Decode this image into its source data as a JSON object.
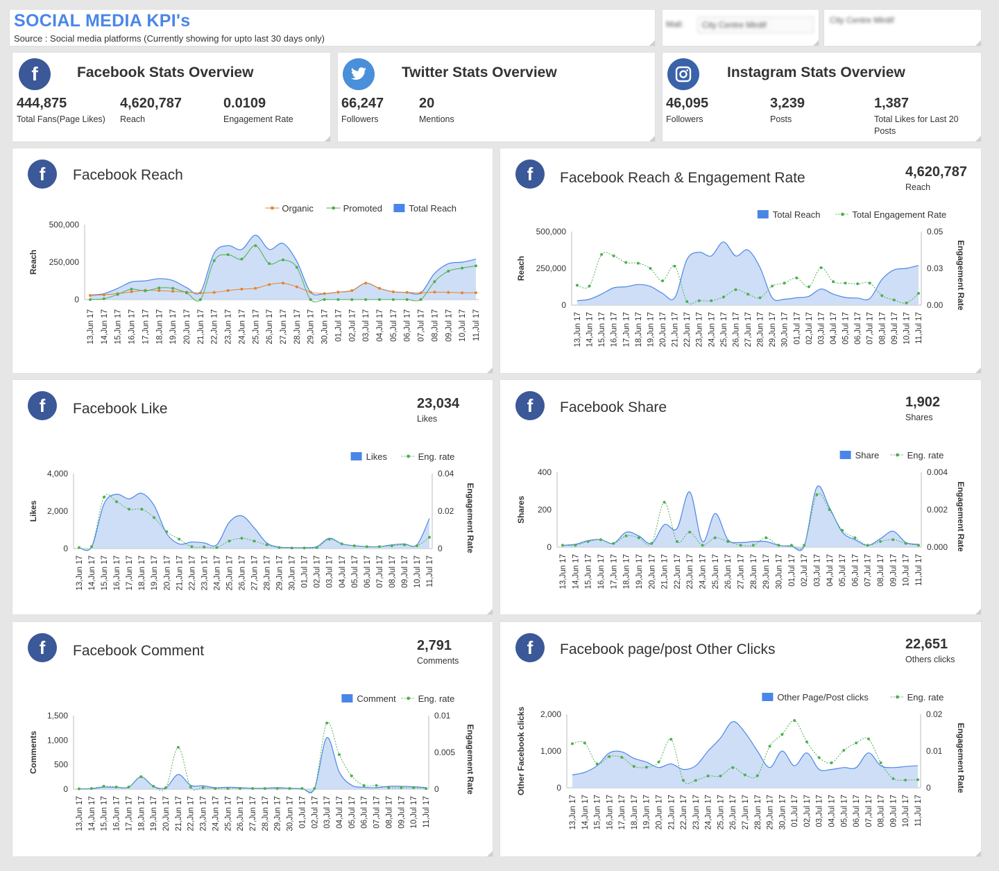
{
  "header": {
    "title": "SOCIAL MEDIA KPI's",
    "subtitle": "Source : Social media platforms (Currently showing for upto last 30 days only)"
  },
  "filters": {
    "mall_label": "Mall:",
    "mall_value": "City Centre Mirdif",
    "selected_display": "City Centre Mirdif"
  },
  "overview": {
    "facebook": {
      "title": "Facebook Stats Overview",
      "kpis": [
        {
          "value": "444,875",
          "label": "Total Fans(Page Likes)"
        },
        {
          "value": "4,620,787",
          "label": "Reach"
        },
        {
          "value": "0.0109",
          "label": "Engagement Rate"
        }
      ]
    },
    "twitter": {
      "title": "Twitter Stats Overview",
      "kpis": [
        {
          "value": "66,247",
          "label": "Followers"
        },
        {
          "value": "20",
          "label": "Mentions"
        }
      ]
    },
    "instagram": {
      "title": "Instagram Stats Overview",
      "kpis": [
        {
          "value": "46,095",
          "label": "Followers"
        },
        {
          "value": "3,239",
          "label": "Posts"
        },
        {
          "value": "1,387",
          "label": "Total Likes for Last 20 Posts"
        }
      ]
    }
  },
  "colors": {
    "accent": "#4a86e8",
    "facebook": "#3b5898",
    "twitter": "#4a8fd9",
    "instagram": "#3a62a8",
    "area_fill": "#c9daf5",
    "area_line": "#4a86e8",
    "organic": "#e8822a",
    "promoted": "#4caf50"
  },
  "chart_data": [
    {
      "id": "fb-reach",
      "type": "area",
      "title": "Facebook Reach",
      "ylabel": "Reach",
      "ylim": [
        0,
        500000
      ],
      "yticks": [
        "0",
        "250,000",
        "500,000"
      ],
      "x": [
        "13,Jun 17",
        "14,Jun 17",
        "15,Jun 17",
        "16,Jun 17",
        "17,Jun 17",
        "18,Jun 17",
        "19,Jun 17",
        "20,Jun 17",
        "21,Jun 17",
        "22,Jun 17",
        "23,Jun 17",
        "24,Jun 17",
        "25,Jun 17",
        "26,Jun 17",
        "27,Jun 17",
        "28,Jun 17",
        "29,Jun 17",
        "30,Jun 17",
        "01,Jul 17",
        "02,Jul 17",
        "03,Jul 17",
        "04,Jul 17",
        "05,Jul 17",
        "06,Jul 17",
        "07,Jul 17",
        "08,Jul 17",
        "09,Jul 17",
        "10,Jul 17",
        "11,Jul 17"
      ],
      "legend": "top-right",
      "series": [
        {
          "name": "Organic",
          "kind": "line",
          "color": "#e8822a",
          "values": [
            28000,
            32000,
            40000,
            52000,
            62000,
            60000,
            55000,
            50000,
            45000,
            48000,
            60000,
            70000,
            75000,
            100000,
            110000,
            85000,
            50000,
            40000,
            50000,
            60000,
            110000,
            75000,
            52000,
            48000,
            45000,
            50000,
            48000,
            45000,
            46000
          ]
        },
        {
          "name": "Promoted",
          "kind": "line",
          "color": "#4caf50",
          "values": [
            0,
            5000,
            35000,
            70000,
            58000,
            78000,
            75000,
            45000,
            0,
            260000,
            300000,
            270000,
            360000,
            240000,
            265000,
            215000,
            0,
            0,
            0,
            0,
            0,
            0,
            0,
            0,
            0,
            120000,
            190000,
            210000,
            225000
          ]
        },
        {
          "name": "Total Reach",
          "kind": "area",
          "color": "#4a86e8",
          "values": [
            30000,
            40000,
            75000,
            118000,
            125000,
            140000,
            128000,
            80000,
            50000,
            310000,
            360000,
            335000,
            430000,
            335000,
            375000,
            255000,
            50000,
            40000,
            50000,
            60000,
            110000,
            75000,
            52000,
            48000,
            45000,
            175000,
            240000,
            250000,
            270000
          ]
        }
      ]
    },
    {
      "id": "fb-reach-eng",
      "type": "area",
      "title": "Facebook Reach & Engagement Rate",
      "big_value": "4,620,787",
      "big_label": "Reach",
      "ylabel": "Reach",
      "y2label": "Engagement Rate",
      "ylim": [
        0,
        500000
      ],
      "yticks": [
        "0",
        "250,000",
        "500,000"
      ],
      "y2lim": [
        0,
        0.05
      ],
      "y2ticks": [
        "0.00",
        "0.03",
        "0.05"
      ],
      "x": [
        "13,Jun 17",
        "14,Jun 17",
        "15,Jun 17",
        "16,Jun 17",
        "17,Jun 17",
        "18,Jun 17",
        "19,Jun 17",
        "20,Jun 17",
        "21,Jun 17",
        "22,Jun 17",
        "23,Jun 17",
        "24,Jun 17",
        "25,Jun 17",
        "26,Jun 17",
        "27,Jun 17",
        "28,Jun 17",
        "29,Jun 17",
        "30,Jun 17",
        "01,Jul 17",
        "02,Jul 17",
        "03,Jul 17",
        "04,Jul 17",
        "05,Jul 17",
        "06,Jul 17",
        "07,Jul 17",
        "08,Jul 17",
        "09,Jul 17",
        "10,Jul 17",
        "11,Jul 17"
      ],
      "legend": "top-right",
      "series": [
        {
          "name": "Total Reach",
          "kind": "area",
          "axis": "y",
          "color": "#4a86e8",
          "values": [
            30000,
            40000,
            75000,
            118000,
            125000,
            140000,
            128000,
            80000,
            50000,
            310000,
            360000,
            335000,
            430000,
            335000,
            375000,
            255000,
            50000,
            40000,
            50000,
            60000,
            110000,
            75000,
            52000,
            48000,
            45000,
            175000,
            240000,
            250000,
            270000
          ]
        },
        {
          "name": "Total Engagement Rate",
          "kind": "line",
          "axis": "y2",
          "color": "#4caf50",
          "values": [
            0.0135,
            0.013,
            0.0345,
            0.0335,
            0.029,
            0.0285,
            0.025,
            0.0165,
            0.0265,
            0.0025,
            0.003,
            0.003,
            0.0055,
            0.0105,
            0.0075,
            0.005,
            0.013,
            0.015,
            0.0185,
            0.0125,
            0.0255,
            0.016,
            0.015,
            0.0145,
            0.015,
            0.0065,
            0.0035,
            0.0015,
            0.008
          ]
        }
      ]
    },
    {
      "id": "fb-like",
      "type": "area",
      "title": "Facebook Like",
      "big_value": "23,034",
      "big_label": "Likes",
      "ylabel": "Likes",
      "y2label": "Engagement Rate",
      "ylim": [
        0,
        4000
      ],
      "yticks": [
        "0",
        "2,000",
        "4,000"
      ],
      "y2lim": [
        0,
        0.04
      ],
      "y2ticks": [
        "0",
        "0.02",
        "0.04"
      ],
      "x": [
        "13,Jun 17",
        "14,Jun 17",
        "15,Jun 17",
        "16,Jun 17",
        "17,Jun 17",
        "18,Jun 17",
        "19,Jun 17",
        "20,Jun 17",
        "21,Jun 17",
        "22,Jun 17",
        "23,Jun 17",
        "24,Jun 17",
        "25,Jun 17",
        "26,Jun 17",
        "27,Jun 17",
        "28,Jun 17",
        "29,Jun 17",
        "30,Jun 17",
        "01,Jul 17",
        "02,Jul 17",
        "03,Jul 17",
        "04,Jul 17",
        "05,Jul 17",
        "06,Jul 17",
        "07,Jul 17",
        "08,Jul 17",
        "09,Jul 17",
        "10,Jul 17",
        "11,Jul 17"
      ],
      "legend": "top-right",
      "series": [
        {
          "name": "Likes",
          "kind": "area",
          "axis": "y",
          "color": "#4a86e8",
          "values": [
            50,
            80,
            2400,
            2900,
            2650,
            2950,
            2300,
            800,
            250,
            350,
            300,
            200,
            1400,
            1750,
            1100,
            300,
            80,
            50,
            50,
            100,
            550,
            250,
            150,
            100,
            100,
            200,
            250,
            200,
            1600
          ]
        },
        {
          "name": "Eng. rate",
          "kind": "line",
          "axis": "y2",
          "color": "#4caf50",
          "values": [
            0.0005,
            0.001,
            0.0275,
            0.025,
            0.021,
            0.021,
            0.0165,
            0.009,
            0.005,
            0.001,
            0.0008,
            0.0005,
            0.004,
            0.0055,
            0.004,
            0.002,
            0.0005,
            0.0003,
            0.0003,
            0.0005,
            0.005,
            0.0025,
            0.0015,
            0.001,
            0.001,
            0.0015,
            0.002,
            0.0015,
            0.006
          ]
        }
      ]
    },
    {
      "id": "fb-share",
      "type": "area",
      "title": "Facebook Share",
      "big_value": "1,902",
      "big_label": "Shares",
      "ylabel": "Shares",
      "y2label": "Engagement Rate",
      "ylim": [
        0,
        400
      ],
      "yticks": [
        "0",
        "200",
        "400"
      ],
      "y2lim": [
        0,
        0.004
      ],
      "y2ticks": [
        "0.000",
        "0.002",
        "0.004"
      ],
      "x": [
        "13,Jun 17",
        "14,Jun 17",
        "15,Jun 17",
        "16,Jun 17",
        "17,Jun 17",
        "18,Jun 17",
        "19,Jun 17",
        "20,Jun 17",
        "21,Jun 17",
        "22,Jun 17",
        "23,Jun 17",
        "24,Jun 17",
        "25,Jun 17",
        "26,Jun 17",
        "27,Jun 17",
        "28,Jun 17",
        "29,Jun 17",
        "30,Jun 17",
        "01,Jul 17",
        "02,Jul 17",
        "03,Jul 17",
        "04,Jul 17",
        "05,Jul 17",
        "06,Jul 17",
        "07,Jul 17",
        "08,Jul 17",
        "09,Jul 17",
        "10,Jul 17",
        "11,Jul 17"
      ],
      "legend": "top-right",
      "series": [
        {
          "name": "Share",
          "kind": "area",
          "axis": "y",
          "color": "#4a86e8",
          "values": [
            10,
            15,
            35,
            40,
            20,
            80,
            60,
            20,
            120,
            100,
            295,
            30,
            180,
            40,
            25,
            30,
            30,
            10,
            5,
            5,
            320,
            210,
            80,
            40,
            10,
            45,
            85,
            25,
            15
          ]
        },
        {
          "name": "Eng. rate",
          "kind": "line",
          "axis": "y2",
          "color": "#4caf50",
          "values": [
            0.0001,
            0.0001,
            0.0003,
            0.0004,
            0.0002,
            0.0006,
            0.0005,
            0.0002,
            0.0024,
            0.0003,
            0.0008,
            0.0001,
            0.0005,
            0.0003,
            0.0001,
            0.0001,
            0.0005,
            0.0001,
            0.0001,
            0.0001,
            0.0028,
            0.002,
            0.0009,
            0.0005,
            0.0001,
            0.0003,
            0.0004,
            0.0002,
            0.0001
          ]
        }
      ]
    },
    {
      "id": "fb-comment",
      "type": "area",
      "title": "Facebook Comment",
      "big_value": "2,791",
      "big_label": "Comments",
      "ylabel": "Comments",
      "y2label": "Engagement Rate",
      "ylim": [
        0,
        1500
      ],
      "yticks": [
        "0",
        "500",
        "1,000",
        "1,500"
      ],
      "y2lim": [
        0,
        0.01
      ],
      "y2ticks": [
        "0",
        "0.005",
        "0.01"
      ],
      "x": [
        "13,Jun 17",
        "14,Jun 17",
        "15,Jun 17",
        "16,Jun 17",
        "17,Jun 17",
        "18,Jun 17",
        "19,Jun 17",
        "20,Jun 17",
        "21,Jun 17",
        "22,Jun 17",
        "23,Jun 17",
        "24,Jun 17",
        "25,Jun 17",
        "26,Jun 17",
        "27,Jun 17",
        "28,Jun 17",
        "29,Jun 17",
        "30,Jun 17",
        "01,Jul 17",
        "02,Jul 17",
        "03,Jul 17",
        "04,Jul 17",
        "05,Jul 17",
        "06,Jul 17",
        "07,Jul 17",
        "08,Jul 17",
        "09,Jul 17",
        "10,Jul 17",
        "11,Jul 17"
      ],
      "legend": "top-right",
      "series": [
        {
          "name": "Comment",
          "kind": "area",
          "axis": "y",
          "color": "#4a86e8",
          "values": [
            5,
            10,
            40,
            40,
            40,
            250,
            60,
            30,
            300,
            80,
            70,
            30,
            40,
            30,
            20,
            20,
            30,
            20,
            10,
            10,
            1050,
            350,
            80,
            40,
            30,
            60,
            60,
            50,
            30
          ]
        },
        {
          "name": "Eng. rate",
          "kind": "line",
          "axis": "y2",
          "color": "#4caf50",
          "values": [
            5e-05,
            0.0001,
            0.0004,
            0.0003,
            0.0003,
            0.0017,
            0.0004,
            0.0002,
            0.0057,
            0.0003,
            0.0002,
            0.0001,
            0.0001,
            0.0001,
            0.0001,
            0.0001,
            0.0001,
            0.0001,
            0.0001,
            0.0001,
            0.009,
            0.0047,
            0.0018,
            0.0005,
            0.0005,
            0.0002,
            0.0002,
            0.0002,
            0.0001
          ]
        }
      ]
    },
    {
      "id": "fb-other-clicks",
      "type": "area",
      "title": "Facebook page/post Other Clicks",
      "big_value": "22,651",
      "big_label": "Others clicks",
      "ylabel": "Other Facebook clicks",
      "y2label": "Engagement Rate",
      "ylim": [
        0,
        2000
      ],
      "yticks": [
        "0",
        "1,000",
        "2,000"
      ],
      "y2lim": [
        0,
        0.02
      ],
      "y2ticks": [
        "0",
        "0.01",
        "0.02"
      ],
      "x": [
        "13,Jun 17",
        "14,Jun 17",
        "15,Jun 17",
        "16,Jun 17",
        "17,Jun 17",
        "18,Jun 17",
        "19,Jun 17",
        "20,Jun 17",
        "21,Jun 17",
        "22,Jun 17",
        "23,Jun 17",
        "24,Jun 17",
        "25,Jun 17",
        "26,Jun 17",
        "27,Jun 17",
        "28,Jun 17",
        "29,Jun 17",
        "30,Jun 17",
        "01,Jul 17",
        "02,Jul 17",
        "03,Jul 17",
        "04,Jul 17",
        "05,Jul 17",
        "06,Jul 17",
        "07,Jul 17",
        "08,Jul 17",
        "09,Jul 17",
        "10,Jul 17",
        "11,Jul 17"
      ],
      "legend": "top-right",
      "series": [
        {
          "name": "Other Page/Post clicks",
          "kind": "area",
          "axis": "y",
          "color": "#4a86e8",
          "values": [
            350,
            420,
            600,
            950,
            980,
            800,
            700,
            550,
            650,
            500,
            600,
            1000,
            1350,
            1800,
            1500,
            1000,
            550,
            1000,
            600,
            950,
            500,
            500,
            550,
            550,
            950,
            600,
            550,
            580,
            600
          ]
        },
        {
          "name": "Eng. rate",
          "kind": "line",
          "axis": "y2",
          "color": "#4caf50",
          "values": [
            0.012,
            0.0122,
            0.0065,
            0.0085,
            0.0083,
            0.0058,
            0.0056,
            0.007,
            0.0132,
            0.002,
            0.002,
            0.0032,
            0.0032,
            0.0055,
            0.0035,
            0.0033,
            0.0113,
            0.0145,
            0.0183,
            0.0125,
            0.0082,
            0.0068,
            0.0102,
            0.0122,
            0.0133,
            0.0068,
            0.0025,
            0.0021,
            0.0022
          ]
        }
      ]
    }
  ]
}
